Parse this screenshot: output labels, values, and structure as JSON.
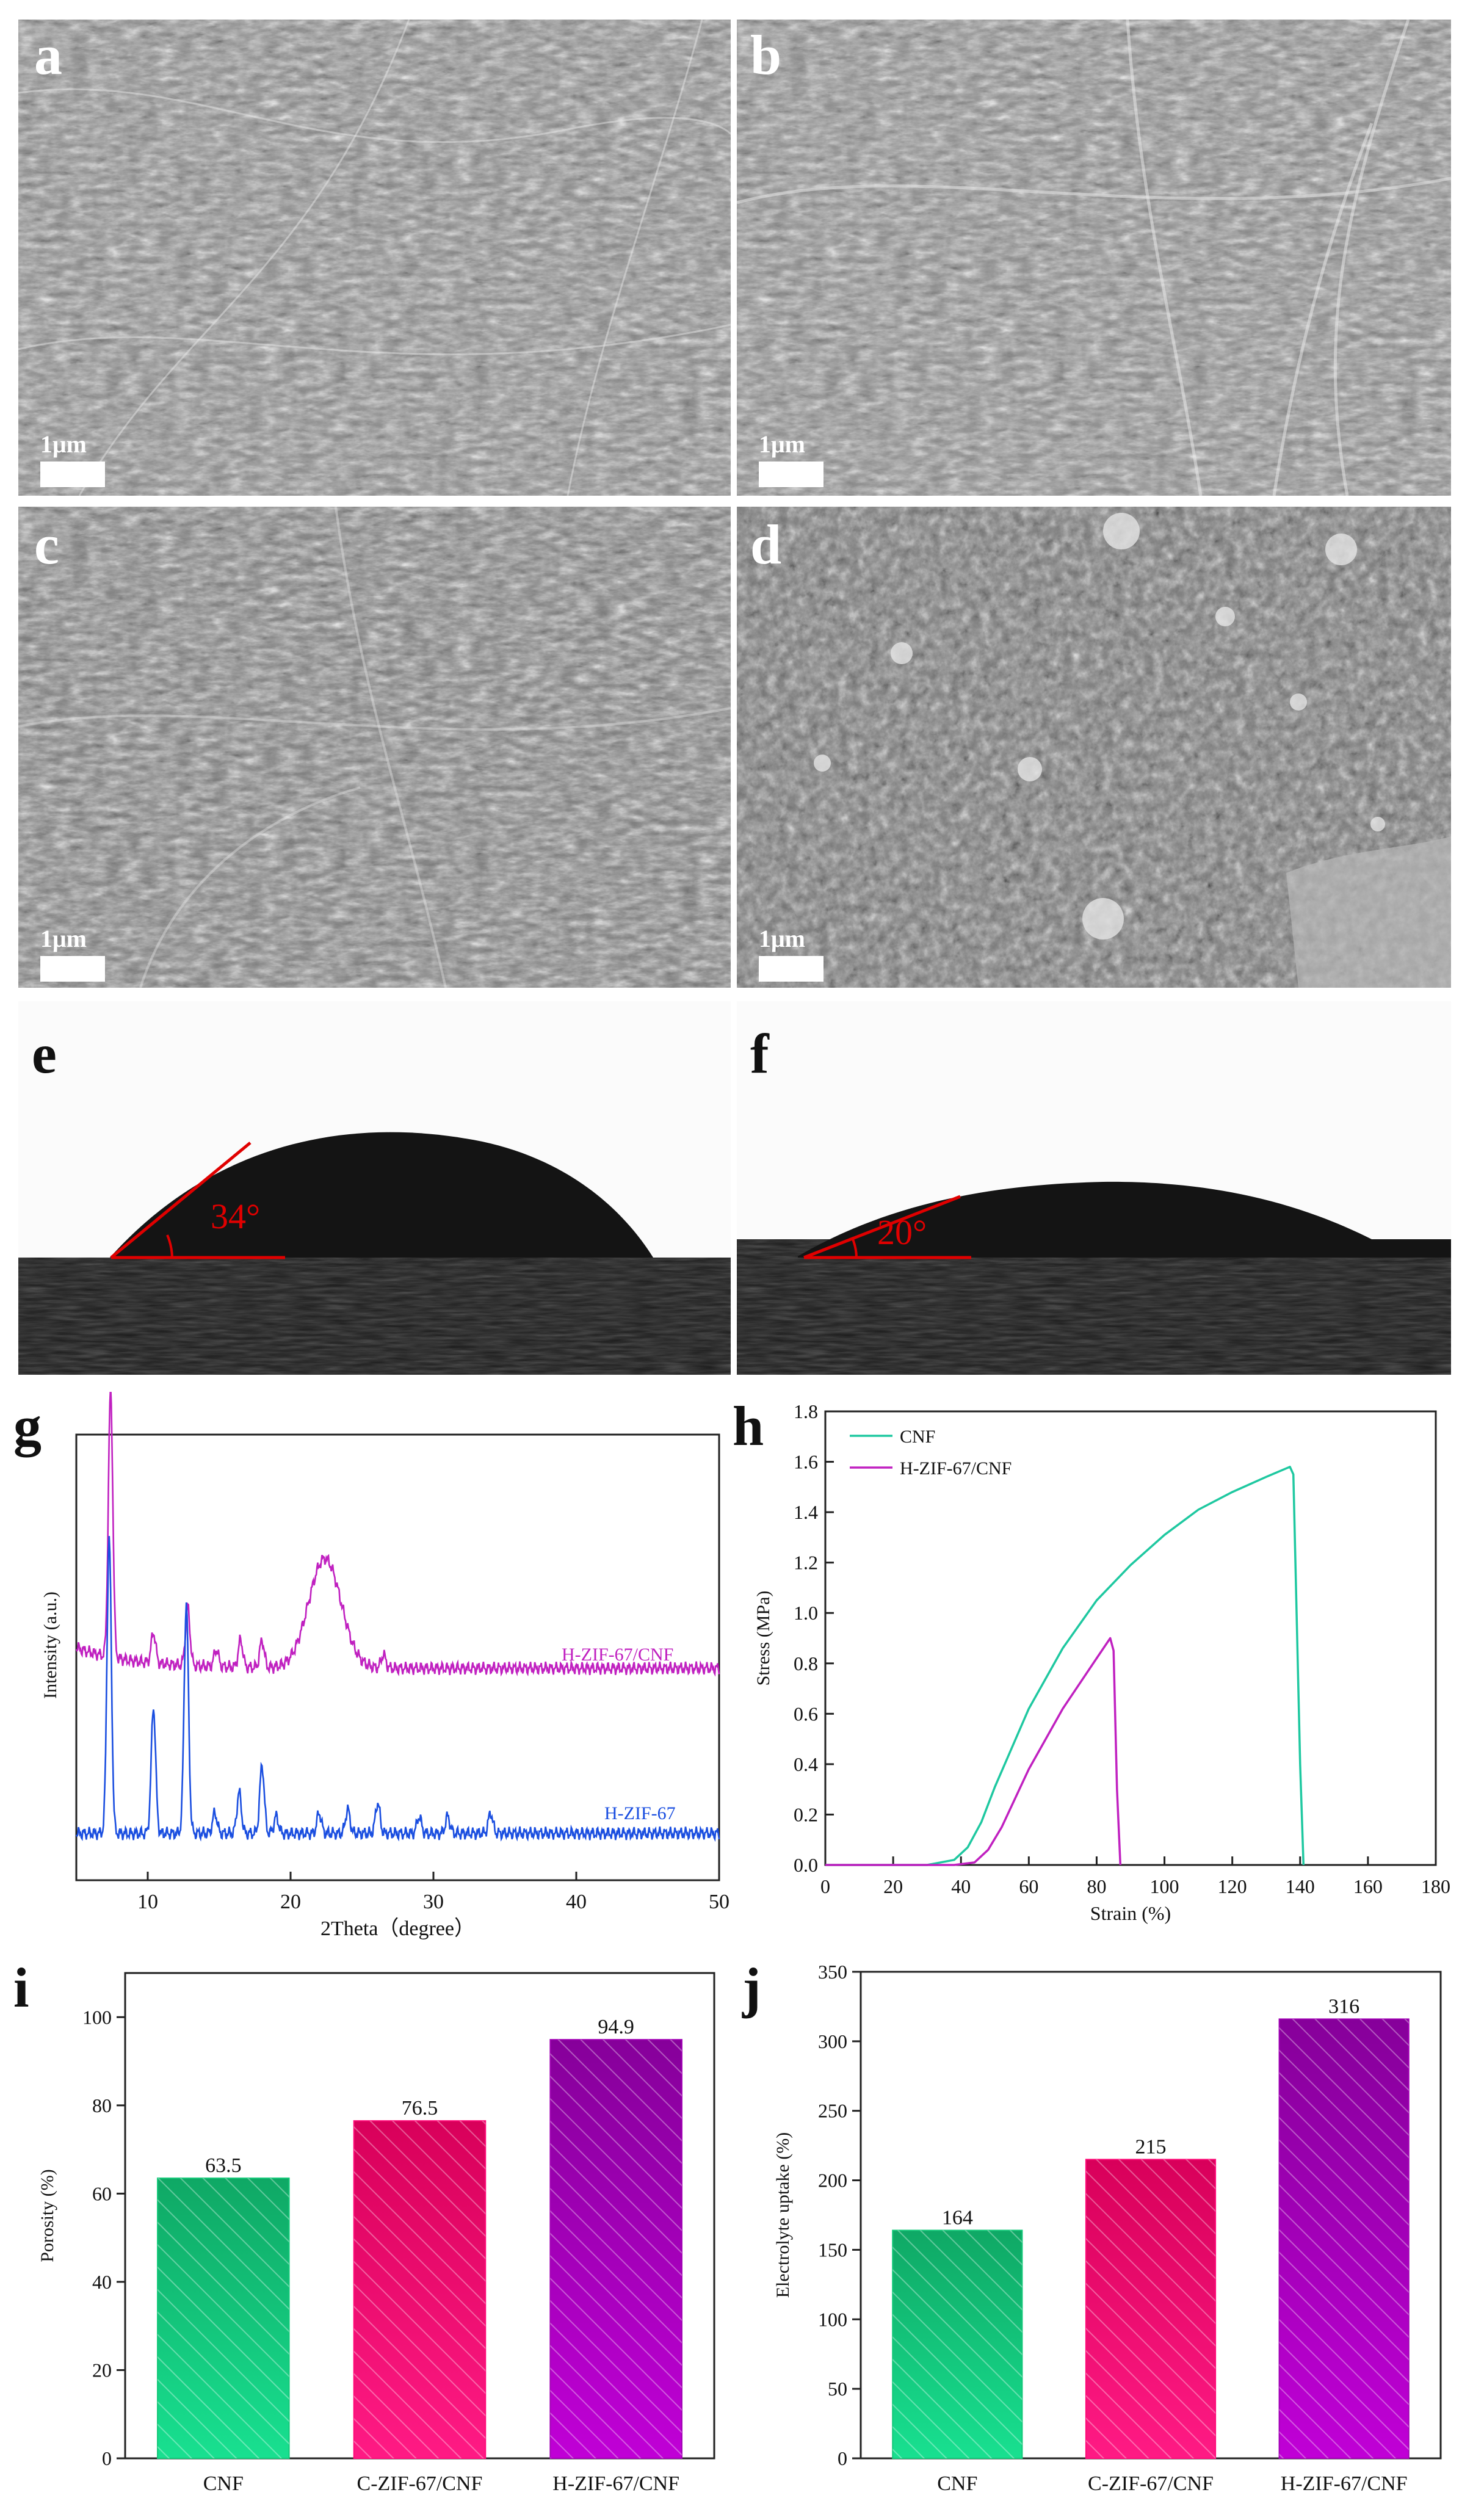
{
  "panels": {
    "a": {
      "letter": "a",
      "scale": "1μm"
    },
    "b": {
      "letter": "b",
      "scale": "1μm"
    },
    "c": {
      "letter": "c",
      "scale": "1μm"
    },
    "d": {
      "letter": "d",
      "scale": "1μm"
    },
    "e": {
      "letter": "e",
      "angle": "34°"
    },
    "f": {
      "letter": "f",
      "angle": "20°"
    },
    "g": {
      "letter": "g"
    },
    "h": {
      "letter": "h"
    },
    "i": {
      "letter": "i"
    },
    "j": {
      "letter": "j"
    }
  },
  "colors": {
    "cnf_line": "#1ec8a0",
    "hzif_cnf_line": "#c020c0",
    "hzif_line": "#1a4ee0",
    "bar_cnf": "#12c878",
    "bar_czif": "#ff0a78",
    "bar_hzif": "#a000b4",
    "angle_red": "#e00000"
  },
  "chart_data": [
    {
      "panel": "g",
      "type": "line",
      "xlabel": "2Theta（degree）",
      "ylabel": "Intensity   (a.u.)",
      "xlim": [
        5,
        50
      ],
      "xticks": [
        10,
        20,
        30,
        40,
        50
      ],
      "series": [
        {
          "name": "H-ZIF-67/CNF",
          "peaks": [
            [
              7.4,
              0.78
            ],
            [
              10.4,
              0.09
            ],
            [
              12.8,
              0.17
            ],
            [
              14.8,
              0.05
            ],
            [
              16.5,
              0.08
            ],
            [
              18.0,
              0.08
            ],
            [
              22.4,
              0.32
            ],
            [
              26.5,
              0.04
            ]
          ],
          "baseline": 0.12
        },
        {
          "name": "H-ZIF-67",
          "peaks": [
            [
              7.3,
              0.86
            ],
            [
              10.4,
              0.37
            ],
            [
              12.7,
              0.67
            ],
            [
              14.7,
              0.06
            ],
            [
              16.4,
              0.12
            ],
            [
              18.0,
              0.2
            ],
            [
              19.0,
              0.05
            ],
            [
              22.0,
              0.06
            ],
            [
              24.0,
              0.07
            ],
            [
              26.1,
              0.09
            ],
            [
              29.0,
              0.05
            ],
            [
              31.0,
              0.05
            ],
            [
              34.0,
              0.06
            ]
          ],
          "baseline": 0.03
        }
      ]
    },
    {
      "panel": "h",
      "type": "line",
      "xlabel": "Strain   (%)",
      "ylabel": "Stress   (MPa)",
      "xlim": [
        0,
        180
      ],
      "ylim": [
        0,
        1.8
      ],
      "xticks": [
        0,
        20,
        40,
        60,
        80,
        100,
        120,
        140,
        160,
        180
      ],
      "yticks": [
        0.0,
        0.2,
        0.4,
        0.6,
        0.8,
        1.0,
        1.2,
        1.4,
        1.6,
        1.8
      ],
      "series": [
        {
          "name": "CNF",
          "x": [
            0,
            30,
            38,
            42,
            46,
            50,
            60,
            70,
            80,
            90,
            100,
            110,
            120,
            130,
            137,
            138,
            140,
            141
          ],
          "y": [
            0,
            0,
            0.02,
            0.07,
            0.17,
            0.31,
            0.62,
            0.86,
            1.05,
            1.19,
            1.31,
            1.41,
            1.48,
            1.54,
            1.58,
            1.55,
            0.4,
            0
          ]
        },
        {
          "name": "H-ZIF-67/CNF",
          "x": [
            0,
            38,
            44,
            48,
            52,
            60,
            70,
            80,
            84,
            85,
            86,
            87
          ],
          "y": [
            0,
            0,
            0.01,
            0.06,
            0.15,
            0.38,
            0.62,
            0.82,
            0.9,
            0.85,
            0.3,
            0
          ]
        }
      ]
    },
    {
      "panel": "i",
      "type": "bar",
      "categories": [
        "CNF",
        "C-ZIF-67/CNF",
        "H-ZIF-67/CNF"
      ],
      "values": [
        63.5,
        76.5,
        94.9
      ],
      "value_labels": [
        "63.5",
        "76.5",
        "94.9"
      ],
      "ylabel": "Porosity   (%)",
      "ylim": [
        0,
        110
      ],
      "yticks": [
        0,
        20,
        40,
        60,
        80,
        100
      ]
    },
    {
      "panel": "j",
      "type": "bar",
      "categories": [
        "CNF",
        "C-ZIF-67/CNF",
        "H-ZIF-67/CNF"
      ],
      "values": [
        164,
        215,
        316
      ],
      "value_labels": [
        "164",
        "215",
        "316"
      ],
      "ylabel": "Electrolyte uptake   (%)",
      "ylim": [
        0,
        350
      ],
      "yticks": [
        0,
        50,
        100,
        150,
        200,
        250,
        300,
        350
      ]
    }
  ]
}
